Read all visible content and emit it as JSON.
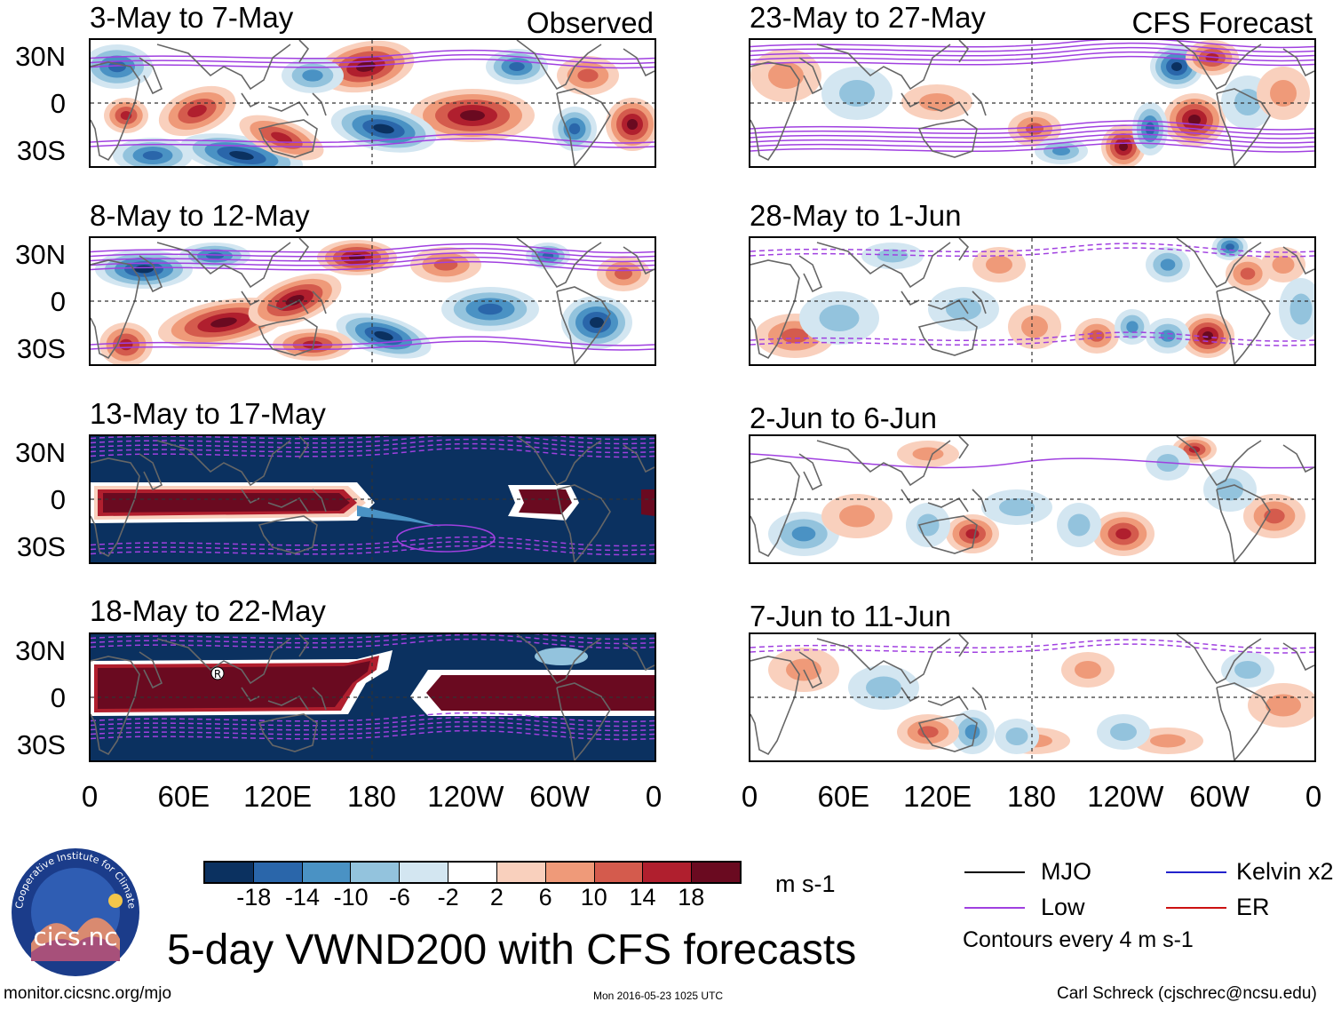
{
  "left_column": {
    "tag": "Observed",
    "panels": [
      {
        "title": "3-May to 7-May"
      },
      {
        "title": "8-May to 12-May"
      },
      {
        "title": "13-May to 17-May",
        "marker": ""
      },
      {
        "title": "18-May to 22-May",
        "marker": "R"
      }
    ]
  },
  "right_column": {
    "tag": "CFS Forecast",
    "panels": [
      {
        "title": "23-May to 27-May"
      },
      {
        "title": "28-May to 1-Jun"
      },
      {
        "title": "2-Jun to 6-Jun"
      },
      {
        "title": "7-Jun to 11-Jun"
      }
    ]
  },
  "axes": {
    "y_ticks": [
      "30N",
      "0",
      "30S"
    ],
    "x_ticks": [
      "0",
      "60E",
      "120E",
      "180",
      "120W",
      "60W",
      "0"
    ]
  },
  "colorbar": {
    "labels": [
      "-18",
      "-14",
      "-10",
      "-6",
      "-2",
      "2",
      "6",
      "10",
      "14",
      "18"
    ],
    "colors": [
      "#0b3160",
      "#2a66aa",
      "#4a92c4",
      "#93c3dd",
      "#d3e6f1",
      "#ffffff",
      "#f9d0bd",
      "#ef9a79",
      "#d45b4d",
      "#b01f2e",
      "#6a0a20"
    ],
    "units": "m s-1"
  },
  "legend": {
    "items": [
      {
        "label": "MJO",
        "color": "#000000"
      },
      {
        "label": "Kelvin x2",
        "color": "#2222cc"
      },
      {
        "label": "Low",
        "color": "#a040e0"
      },
      {
        "label": "ER",
        "color": "#cc1111"
      }
    ],
    "contour_note": "Contours every 4 m s-1"
  },
  "logo": {
    "text": "cics.nc",
    "ring_text": "Cooperative Institute for Climate and Satellites"
  },
  "title": "5-day VWND200 with CFS forecasts",
  "footer": {
    "left": "monitor.cicsnc.org/mjo",
    "center": "Mon 2016-05-23 1025 UTC",
    "right": "Carl Schreck (cjschrec@ncsu.edu)"
  }
}
